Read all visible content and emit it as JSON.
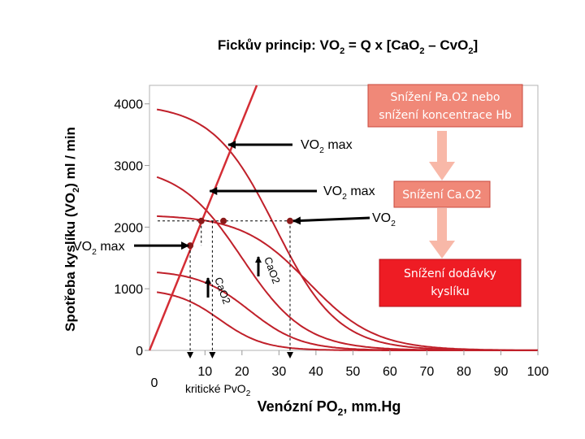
{
  "chart_data": {
    "type": "line",
    "title": {
      "prefix": "Fickův princip:  VO",
      "sub1": "2",
      "mid": " = Q x [CaO",
      "sub2": "2",
      "dash": " – CvO",
      "sub3": "2",
      "end": "]"
    },
    "ylabel": {
      "prefix": "Spotřeba kyslíku (VO",
      "sub": "2",
      "suffix": ") ml / min"
    },
    "xlabel": {
      "prefix": "Venózní PO",
      "sub": "2",
      "suffix": ", mm.Hg"
    },
    "xlim": [
      -5,
      100
    ],
    "ylim": [
      0,
      4300
    ],
    "y_ticks": [
      {
        "value": 4000,
        "label": "4000"
      },
      {
        "value": 3000,
        "label": "3000"
      },
      {
        "value": 2000,
        "label": "2000"
      },
      {
        "value": 1000,
        "label": "1000"
      },
      {
        "value": 0,
        "label": "0"
      }
    ],
    "x_ticks": [
      {
        "value": 10,
        "label": "10"
      },
      {
        "value": 20,
        "label": "20"
      },
      {
        "value": 30,
        "label": "30"
      },
      {
        "value": 40,
        "label": "40"
      },
      {
        "value": 50,
        "label": "50"
      },
      {
        "value": 60,
        "label": "60"
      },
      {
        "value": 70,
        "label": "70"
      },
      {
        "value": 80,
        "label": "80"
      },
      {
        "value": 90,
        "label": "90"
      },
      {
        "value": 100,
        "label": "100"
      }
    ],
    "x_origin_label": "0",
    "series": [
      {
        "name": "CaO2 4000",
        "plateau": 4000,
        "mid": 29,
        "width": 8.5
      },
      {
        "name": "CaO2 3000",
        "plateau": 3000,
        "mid": 20,
        "width": 8.5
      },
      {
        "name": "CaO2 2200",
        "plateau": 2200,
        "mid": 38,
        "width": 9
      },
      {
        "name": "CaO2 1300",
        "plateau": 1300,
        "mid": 22,
        "width": 7
      },
      {
        "name": "CaO2 1000",
        "plateau": 1000,
        "mid": 14,
        "width": 6
      }
    ],
    "supply_line": {
      "points": [
        [
          -5,
          0
        ],
        [
          24,
          4300
        ]
      ]
    },
    "vo2_level": 2100,
    "intersections": [
      {
        "x": 9,
        "y": 2100
      },
      {
        "x": 15,
        "y": 2100
      },
      {
        "x": 33,
        "y": 2100
      },
      {
        "x": 6,
        "y": 1700
      }
    ],
    "dashed_drops": [
      {
        "x": 6,
        "from": 1700
      },
      {
        "x": 12,
        "from": 2100
      },
      {
        "x": 33,
        "from": 2100
      }
    ],
    "annotations": {
      "vo2max_top": {
        "text": "VO",
        "sub": "2",
        "suffix": " max",
        "x": 15,
        "y": 3600
      },
      "vo2max_mid": {
        "text": "VO",
        "sub": "2",
        "suffix": " max",
        "x": 10,
        "y": 2620
      },
      "vo2max_left": {
        "text": "VO",
        "sub": "2",
        "suffix": " max",
        "x": 6,
        "y": 1700
      },
      "vo2": {
        "text": "VO",
        "sub": "2",
        "x": 33,
        "y": 2100
      },
      "cao2_right": "CaO2",
      "cao2_left": "CaO2",
      "kriticke": {
        "prefix": "kritické PvO",
        "sub": "2"
      },
      "box1": {
        "line1": "Snížení Pa.O2 nebo",
        "line2": "snížení koncentrace Hb"
      },
      "box2": "Snížení Ca.O2",
      "box3": {
        "line1": "Snížení dodávky",
        "line2": "kyslíku"
      }
    },
    "colors": {
      "curve": "#c0202a",
      "supply": "#d42d35",
      "box_fill": "#f08878",
      "box_stroke": "#c9473d",
      "box3_fill": "#ee1c24",
      "arrow_fill": "#f8b8a8",
      "plot_border": "#b3b3b3"
    }
  }
}
